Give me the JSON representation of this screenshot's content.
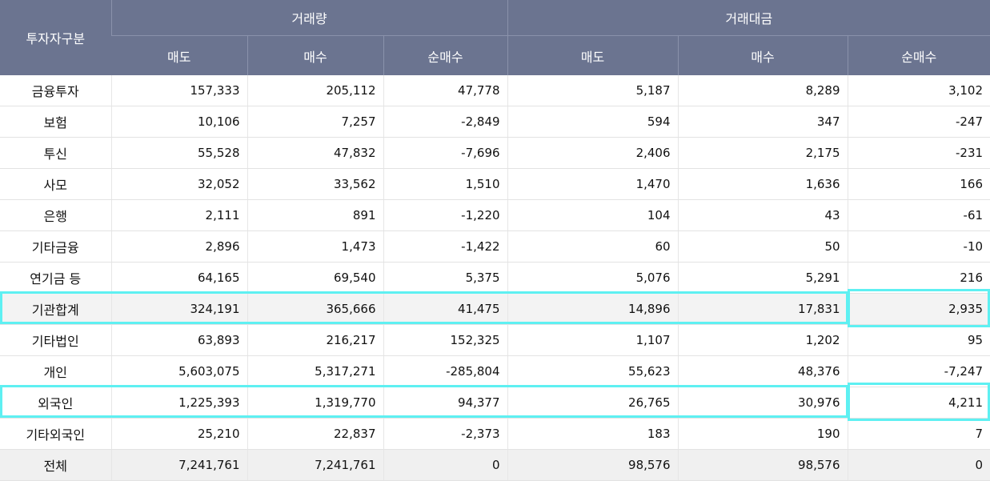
{
  "header": {
    "investor_type": "투자자구분",
    "volume": "거래량",
    "amount": "거래대금",
    "sell": "매도",
    "buy": "매수",
    "net_buy": "순매수"
  },
  "rows": [
    {
      "name": "금융투자",
      "v_sell": "157,333",
      "v_buy": "205,112",
      "v_net": "47,778",
      "a_sell": "5,187",
      "a_buy": "8,289",
      "a_net": "3,102"
    },
    {
      "name": "보험",
      "v_sell": "10,106",
      "v_buy": "7,257",
      "v_net": "-2,849",
      "a_sell": "594",
      "a_buy": "347",
      "a_net": "-247"
    },
    {
      "name": "투신",
      "v_sell": "55,528",
      "v_buy": "47,832",
      "v_net": "-7,696",
      "a_sell": "2,406",
      "a_buy": "2,175",
      "a_net": "-231"
    },
    {
      "name": "사모",
      "v_sell": "32,052",
      "v_buy": "33,562",
      "v_net": "1,510",
      "a_sell": "1,470",
      "a_buy": "1,636",
      "a_net": "166"
    },
    {
      "name": "은행",
      "v_sell": "2,111",
      "v_buy": "891",
      "v_net": "-1,220",
      "a_sell": "104",
      "a_buy": "43",
      "a_net": "-61"
    },
    {
      "name": "기타금융",
      "v_sell": "2,896",
      "v_buy": "1,473",
      "v_net": "-1,422",
      "a_sell": "60",
      "a_buy": "50",
      "a_net": "-10"
    },
    {
      "name": "연기금 등",
      "v_sell": "64,165",
      "v_buy": "69,540",
      "v_net": "5,375",
      "a_sell": "5,076",
      "a_buy": "5,291",
      "a_net": "216"
    },
    {
      "name": "기관합계",
      "v_sell": "324,191",
      "v_buy": "365,666",
      "v_net": "41,475",
      "a_sell": "14,896",
      "a_buy": "17,831",
      "a_net": "2,935"
    },
    {
      "name": "기타법인",
      "v_sell": "63,893",
      "v_buy": "216,217",
      "v_net": "152,325",
      "a_sell": "1,107",
      "a_buy": "1,202",
      "a_net": "95"
    },
    {
      "name": "개인",
      "v_sell": "5,603,075",
      "v_buy": "5,317,271",
      "v_net": "-285,804",
      "a_sell": "55,623",
      "a_buy": "48,376",
      "a_net": "-7,247"
    },
    {
      "name": "외국인",
      "v_sell": "1,225,393",
      "v_buy": "1,319,770",
      "v_net": "94,377",
      "a_sell": "26,765",
      "a_buy": "30,976",
      "a_net": "4,211"
    },
    {
      "name": "기타외국인",
      "v_sell": "25,210",
      "v_buy": "22,837",
      "v_net": "-2,373",
      "a_sell": "183",
      "a_buy": "190",
      "a_net": "7"
    },
    {
      "name": "전체",
      "v_sell": "7,241,761",
      "v_buy": "7,241,761",
      "v_net": "0",
      "a_sell": "98,576",
      "a_buy": "98,576",
      "a_net": "0"
    }
  ],
  "colors": {
    "header_bg": "#6b7490",
    "highlight": "#5ef0f2"
  }
}
